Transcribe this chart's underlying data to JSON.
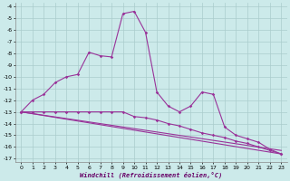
{
  "xlabel": "Windchill (Refroidissement éolien,°C)",
  "bg_color": "#cceaea",
  "grid_color": "#aacccc",
  "line_color": "#993399",
  "xlim": [
    -0.5,
    23.5
  ],
  "ylim": [
    -17.3,
    -3.7
  ],
  "xticks": [
    0,
    1,
    2,
    3,
    4,
    5,
    6,
    7,
    8,
    9,
    10,
    11,
    12,
    13,
    14,
    15,
    16,
    17,
    18,
    19,
    20,
    21,
    22,
    23
  ],
  "yticks": [
    -4,
    -5,
    -6,
    -7,
    -8,
    -9,
    -10,
    -11,
    -12,
    -13,
    -14,
    -15,
    -16,
    -17
  ],
  "series1_x": [
    0,
    1,
    2,
    3,
    4,
    5,
    6,
    7,
    8,
    9,
    10,
    11,
    12,
    13,
    14,
    15,
    16,
    17,
    18,
    19,
    20,
    21,
    22,
    23
  ],
  "series1_y": [
    -13,
    -12,
    -11.5,
    -10.5,
    -10,
    -9.8,
    -7.9,
    -8.2,
    -8.3,
    -4.6,
    -4.4,
    -6.2,
    -11.3,
    -12.5,
    -13,
    -12.5,
    -11.3,
    -11.5,
    -14.3,
    -15.0,
    -15.3,
    -15.6,
    -16.2,
    -16.6
  ],
  "series2_x": [
    0,
    1,
    2,
    3,
    4,
    5,
    6,
    7,
    8,
    9,
    10,
    11,
    12,
    13,
    14,
    15,
    16,
    17,
    18,
    19,
    20,
    21,
    22,
    23
  ],
  "series2_y": [
    -13,
    -13,
    -13,
    -13,
    -13,
    -13,
    -13,
    -13,
    -13,
    -13,
    -13.4,
    -13.5,
    -13.7,
    -14.0,
    -14.2,
    -14.5,
    -14.8,
    -15.0,
    -15.2,
    -15.5,
    -15.7,
    -16.0,
    -16.3,
    -16.6
  ],
  "series3_y0": -13.0,
  "series3_y1": -16.6,
  "series4_y0": -13.0,
  "series4_y1": -16.3
}
